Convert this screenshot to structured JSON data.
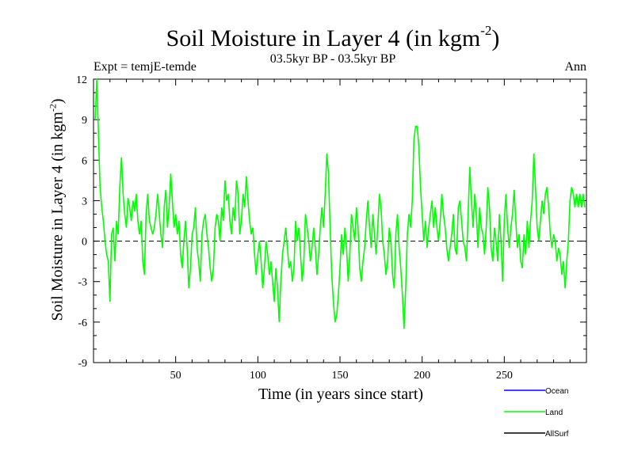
{
  "chart_data": {
    "type": "line",
    "title_main": "Soil Moisture in Layer 4 (in kgm",
    "title_exp": "-2",
    "title_close": ")",
    "experiment": "Expt = temjE-temde",
    "subtitle": "03.5kyr BP - 03.5kyr BP",
    "season": "Ann",
    "xlabel": "Time (in years since start)",
    "ylabel_main": "Soil Moisture in Layer 4 (in kgm",
    "ylabel_exp": "-2",
    "ylabel_close": ")",
    "xlim": [
      0,
      300
    ],
    "ylim": [
      -9,
      12
    ],
    "x_ticks": [
      50,
      100,
      150,
      200,
      250
    ],
    "x_tick_labels": [
      "50",
      "100",
      "150",
      "200",
      "250"
    ],
    "y_ticks": [
      -9,
      -6,
      -3,
      0,
      3,
      6,
      9,
      12
    ],
    "y_tick_labels": [
      "-9",
      "-6",
      "-3",
      "0",
      "3",
      "6",
      "9",
      "12"
    ],
    "zero_line": 0,
    "series": [
      {
        "name": "Land",
        "color": "#00ff00",
        "x_start": 1,
        "x_step": 1,
        "values": [
          9.0,
          12.0,
          8.0,
          4.0,
          2.5,
          1.5,
          0.0,
          -1.0,
          -1.5,
          -4.5,
          0.5,
          1.0,
          -1.5,
          1.5,
          0.5,
          4.0,
          6.2,
          3.5,
          2.0,
          1.0,
          3.2,
          2.5,
          1.5,
          3.0,
          2.2,
          3.5,
          1.5,
          0.5,
          1.5,
          -1.5,
          -2.5,
          2.0,
          3.5,
          1.5,
          1.0,
          0.5,
          1.0,
          2.0,
          3.5,
          2.0,
          0.5,
          -0.5,
          2.5,
          3.8,
          1.0,
          2.5,
          5.0,
          3.0,
          1.0,
          2.0,
          0.5,
          1.5,
          -1.0,
          -2.0,
          0.0,
          1.5,
          -0.5,
          -3.5,
          -2.0,
          0.5,
          1.0,
          2.5,
          -0.5,
          -1.5,
          -3.0,
          0.5,
          1.5,
          2.0,
          0.5,
          -0.5,
          -2.0,
          -3.0,
          -2.0,
          1.0,
          2.0,
          1.5,
          0.0,
          2.5,
          1.5,
          4.5,
          3.0,
          3.5,
          1.5,
          0.5,
          2.5,
          1.5,
          4.5,
          3.5,
          0.5,
          1.5,
          3.5,
          2.5,
          4.8,
          3.0,
          1.5,
          0.5,
          1.0,
          -1.0,
          -2.5,
          -1.0,
          0.0,
          -1.5,
          -3.5,
          -2.0,
          0.0,
          -1.0,
          -2.5,
          -1.5,
          -3.0,
          -4.5,
          -2.0,
          -3.5,
          -6.0,
          -3.0,
          -1.0,
          0.0,
          1.0,
          -0.5,
          -2.0,
          -1.5,
          -3.0,
          -2.0,
          1.5,
          0.0,
          1.0,
          -1.0,
          -3.0,
          -1.5,
          2.0,
          1.0,
          0.0,
          -1.5,
          -0.5,
          1.0,
          -0.5,
          -2.5,
          -1.0,
          1.0,
          2.5,
          1.0,
          3.5,
          6.5,
          5.0,
          1.0,
          -2.5,
          -4.5,
          -6.0,
          -5.5,
          -4.0,
          -2.0,
          0.5,
          -1.0,
          1.0,
          -0.5,
          -3.0,
          -1.0,
          2.0,
          1.0,
          0.0,
          2.5,
          1.0,
          -2.0,
          -3.0,
          -1.5,
          -0.5,
          1.5,
          3.0,
          1.0,
          -0.5,
          2.0,
          0.5,
          -1.0,
          1.0,
          3.5,
          2.5,
          0.0,
          -1.0,
          -2.5,
          -1.5,
          1.0,
          0.0,
          -2.5,
          -3.5,
          0.5,
          2.0,
          -0.5,
          -2.0,
          -4.0,
          -6.5,
          -3.5,
          0.5,
          2.0,
          1.0,
          3.0,
          7.5,
          8.5,
          8.5,
          7.0,
          4.0,
          2.0,
          0.0,
          1.5,
          -0.5,
          1.0,
          2.0,
          3.0,
          1.0,
          2.5,
          1.0,
          0.0,
          1.5,
          3.5,
          2.0,
          1.0,
          -0.5,
          -1.5,
          -0.5,
          0.5,
          2.0,
          -0.5,
          -1.0,
          2.5,
          3.0,
          1.5,
          0.0,
          -0.5,
          -1.5,
          2.0,
          5.5,
          3.0,
          1.0,
          3.5,
          2.0,
          -0.5,
          2.5,
          1.0,
          0.5,
          -1.0,
          1.0,
          4.0,
          2.5,
          -0.5,
          -1.5,
          1.0,
          0.0,
          -1.5,
          2.0,
          0.0,
          -3.0,
          1.5,
          3.5,
          1.0,
          -0.5,
          1.0,
          2.0,
          3.8,
          1.5,
          -0.5,
          0.5,
          -1.5,
          -2.0,
          0.5,
          -1.0,
          1.5,
          -0.5,
          1.5,
          3.0,
          6.5,
          4.0,
          1.0,
          0.0,
          1.5,
          3.0,
          2.0,
          3.5,
          4.0,
          2.5,
          0.5,
          -0.5,
          0.5,
          0.0,
          -1.5,
          -0.5,
          -1.0,
          -2.5,
          -1.5,
          -3.5,
          -1.5,
          0.0,
          3.0,
          4.0,
          3.5,
          2.5,
          3.5,
          2.5,
          3.5,
          2.5,
          3.5,
          2.5
        ]
      }
    ],
    "legend": [
      {
        "label": "Ocean",
        "color": "#0000ff"
      },
      {
        "label": "Land",
        "color": "#00ff00"
      },
      {
        "label": "AllSurf",
        "color": "#000000"
      }
    ]
  }
}
